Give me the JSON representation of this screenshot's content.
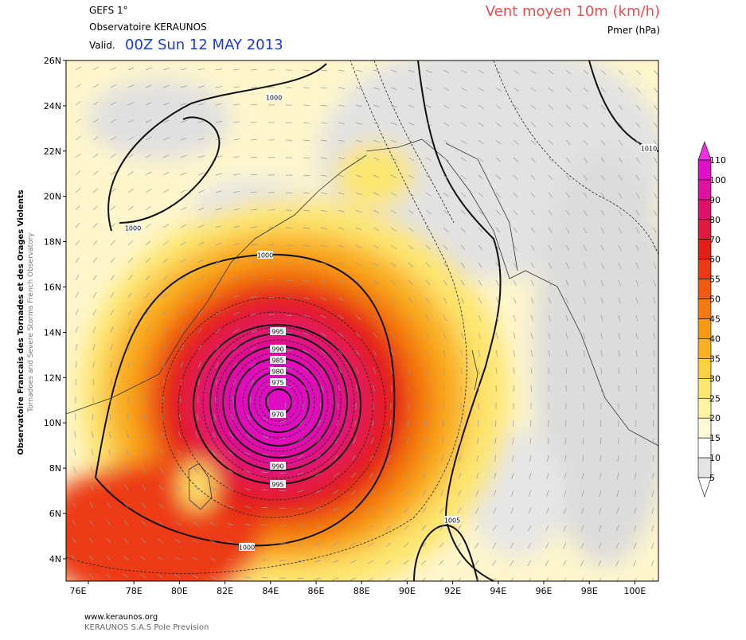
{
  "header": {
    "model": "GEFS 1°",
    "source": "Observatoire KERAUNOS",
    "valid_label": "Valid.",
    "valid_time": "00Z Sun 12 MAY 2013",
    "field": "Vent moyen 10m (km/h)",
    "overlay": "Pmer (hPa)"
  },
  "side_text": [
    "Observatoire Francais des Tornades et des Orages Violents",
    "Tornadoes and Severe Storms French Observatory"
  ],
  "axes": {
    "latitudes": [
      "26N",
      "24N",
      "22N",
      "20N",
      "18N",
      "16N",
      "14N",
      "12N",
      "10N",
      "8N",
      "6N",
      "4N"
    ],
    "longitudes": [
      "76E",
      "78E",
      "80E",
      "82E",
      "84E",
      "86E",
      "88E",
      "90E",
      "92E",
      "94E",
      "96E",
      "98E",
      "100E"
    ]
  },
  "colorbar": {
    "levels": [
      "110",
      "100",
      "90",
      "80",
      "70",
      "60",
      "55",
      "50",
      "45",
      "40",
      "35",
      "30",
      "25",
      "20",
      "15",
      "10",
      "5"
    ],
    "colors": [
      "#f030e0",
      "#e010c8",
      "#e010a0",
      "#e0106a",
      "#e21a40",
      "#e41e14",
      "#ec3a14",
      "#f25a14",
      "#f47a10",
      "#f79a10",
      "#f9b020",
      "#fcd13f",
      "#fde66e",
      "#fff3a0",
      "#fffbd8",
      "#ffffff",
      "#e4e4e4",
      "#ffffff"
    ]
  },
  "isobar_labels": [
    "995",
    "990",
    "985",
    "980",
    "975",
    "970",
    "990",
    "995",
    "1000",
    "1000",
    "1000",
    "1000",
    "1010",
    "1005"
  ],
  "footer": {
    "url": "www.keraunos.org",
    "company": "KERAUNOS S.A.S Pole Prevision"
  }
}
